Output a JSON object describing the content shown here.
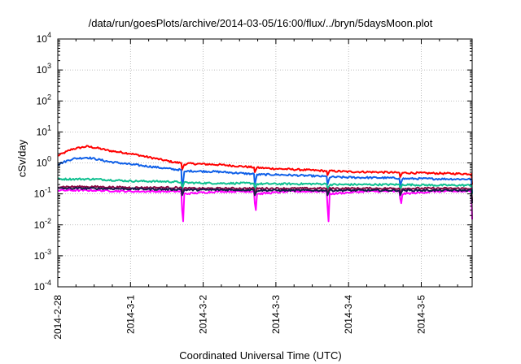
{
  "chart_data": {
    "type": "line",
    "title": "/data/run/goesPlots/archive/2014-03-05/16:00/flux/../bryn/5daysMoon.plot",
    "xlabel": "Coordinated Universal Time (UTC)",
    "ylabel": "cSv/day",
    "yscale": "log",
    "ylim": [
      0.0001,
      10000
    ],
    "xlim": [
      0,
      5.7
    ],
    "grid": "dotted",
    "legend": "none",
    "x_tick_labels": [
      {
        "x": 0,
        "label": "2014-2-28"
      },
      {
        "x": 1,
        "label": "2014-3-1"
      },
      {
        "x": 2,
        "label": "2014-3-2"
      },
      {
        "x": 3,
        "label": "2014-3-3"
      },
      {
        "x": 4,
        "label": "2014-3-4"
      },
      {
        "x": 5,
        "label": "2014-3-5"
      }
    ],
    "y_ticks": [
      {
        "exp": -4,
        "base": "10",
        "sup": "-4"
      },
      {
        "exp": -3,
        "base": "10",
        "sup": "-3"
      },
      {
        "exp": -2,
        "base": "10",
        "sup": "-2"
      },
      {
        "exp": -1,
        "base": "10",
        "sup": "-1"
      },
      {
        "exp": 0,
        "base": "10",
        "sup": "0"
      },
      {
        "exp": 1,
        "base": "10",
        "sup": "1"
      },
      {
        "exp": 2,
        "base": "10",
        "sup": "2"
      },
      {
        "exp": 3,
        "base": "10",
        "sup": "3"
      },
      {
        "exp": 4,
        "base": "10",
        "sup": "4"
      }
    ],
    "series": [
      {
        "color": "#ff0000",
        "x": [
          0,
          0.2,
          0.4,
          0.55,
          0.7,
          1.0,
          1.3,
          1.6,
          1.699,
          1.71,
          1.74,
          1.8,
          2.2,
          2.6,
          2.699,
          2.71,
          2.74,
          3.0,
          3.5,
          3.699,
          3.71,
          3.74,
          4.0,
          4.5,
          4.699,
          4.71,
          4.74,
          5.0,
          5.5,
          5.69,
          5.7
        ],
        "y": [
          1.7,
          2.8,
          3.4,
          3.0,
          2.5,
          2.0,
          1.45,
          1.05,
          1.0,
          0.6,
          0.9,
          0.95,
          0.88,
          0.75,
          0.72,
          0.5,
          0.7,
          0.65,
          0.58,
          0.55,
          0.4,
          0.55,
          0.52,
          0.5,
          0.48,
          0.35,
          0.48,
          0.47,
          0.45,
          0.44,
          0.2
        ]
      },
      {
        "color": "#1060e8",
        "x": [
          0,
          0.2,
          0.4,
          0.55,
          0.7,
          1.0,
          1.3,
          1.6,
          1.699,
          1.71,
          1.74,
          1.8,
          2.2,
          2.6,
          2.699,
          2.71,
          2.74,
          3.0,
          3.5,
          3.699,
          3.71,
          3.74,
          4.0,
          4.5,
          4.699,
          4.71,
          4.74,
          5.0,
          5.5,
          5.69,
          5.7
        ],
        "y": [
          0.9,
          1.35,
          1.5,
          1.3,
          1.1,
          0.9,
          0.75,
          0.62,
          0.6,
          0.12,
          0.5,
          0.55,
          0.52,
          0.45,
          0.44,
          0.2,
          0.42,
          0.42,
          0.38,
          0.36,
          0.2,
          0.35,
          0.34,
          0.33,
          0.32,
          0.18,
          0.31,
          0.31,
          0.3,
          0.3,
          0.1
        ]
      },
      {
        "color": "#10c090",
        "x": [
          0,
          0.5,
          1.0,
          1.5,
          1.699,
          1.71,
          1.74,
          2.2,
          2.699,
          2.71,
          2.74,
          3.2,
          3.699,
          3.71,
          3.74,
          4.2,
          4.699,
          4.71,
          4.74,
          5.2,
          5.69,
          5.7
        ],
        "y": [
          0.3,
          0.3,
          0.26,
          0.25,
          0.24,
          0.15,
          0.23,
          0.22,
          0.22,
          0.14,
          0.21,
          0.21,
          0.21,
          0.14,
          0.2,
          0.2,
          0.2,
          0.14,
          0.2,
          0.19,
          0.19,
          0.1
        ]
      },
      {
        "color": "#ff00ff",
        "x": [
          0,
          0.5,
          1.0,
          1.5,
          1.699,
          1.71,
          1.725,
          1.74,
          2.2,
          2.699,
          2.71,
          2.725,
          2.74,
          3.2,
          3.699,
          3.71,
          3.725,
          3.74,
          4.2,
          4.699,
          4.71,
          4.725,
          4.74,
          5.2,
          5.69,
          5.7
        ],
        "y": [
          0.13,
          0.13,
          0.12,
          0.12,
          0.12,
          0.03,
          0.013,
          0.1,
          0.12,
          0.12,
          0.05,
          0.03,
          0.1,
          0.12,
          0.12,
          0.04,
          0.013,
          0.1,
          0.12,
          0.12,
          0.07,
          0.05,
          0.1,
          0.12,
          0.12,
          0.015
        ]
      },
      {
        "color": "#8c0a46",
        "x": [
          0,
          0.5,
          1.0,
          1.5,
          1.699,
          1.71,
          1.74,
          2.2,
          2.699,
          2.71,
          2.74,
          3.2,
          3.699,
          3.71,
          3.74,
          4.2,
          4.699,
          4.71,
          4.74,
          5.2,
          5.69,
          5.7
        ],
        "y": [
          0.17,
          0.17,
          0.16,
          0.16,
          0.16,
          0.1,
          0.15,
          0.15,
          0.15,
          0.1,
          0.15,
          0.15,
          0.15,
          0.1,
          0.15,
          0.15,
          0.15,
          0.1,
          0.15,
          0.15,
          0.15,
          0.06
        ]
      },
      {
        "color": "#1a1a4a",
        "x": [
          0,
          0.5,
          1.0,
          1.5,
          1.699,
          1.71,
          1.74,
          2.2,
          2.699,
          2.71,
          2.74,
          3.2,
          3.699,
          3.71,
          3.74,
          4.2,
          4.699,
          4.71,
          4.74,
          5.2,
          5.69,
          5.7
        ],
        "y": [
          0.15,
          0.15,
          0.145,
          0.14,
          0.14,
          0.09,
          0.135,
          0.135,
          0.135,
          0.09,
          0.13,
          0.13,
          0.13,
          0.09,
          0.13,
          0.13,
          0.13,
          0.09,
          0.13,
          0.13,
          0.13,
          0.05
        ]
      }
    ]
  }
}
